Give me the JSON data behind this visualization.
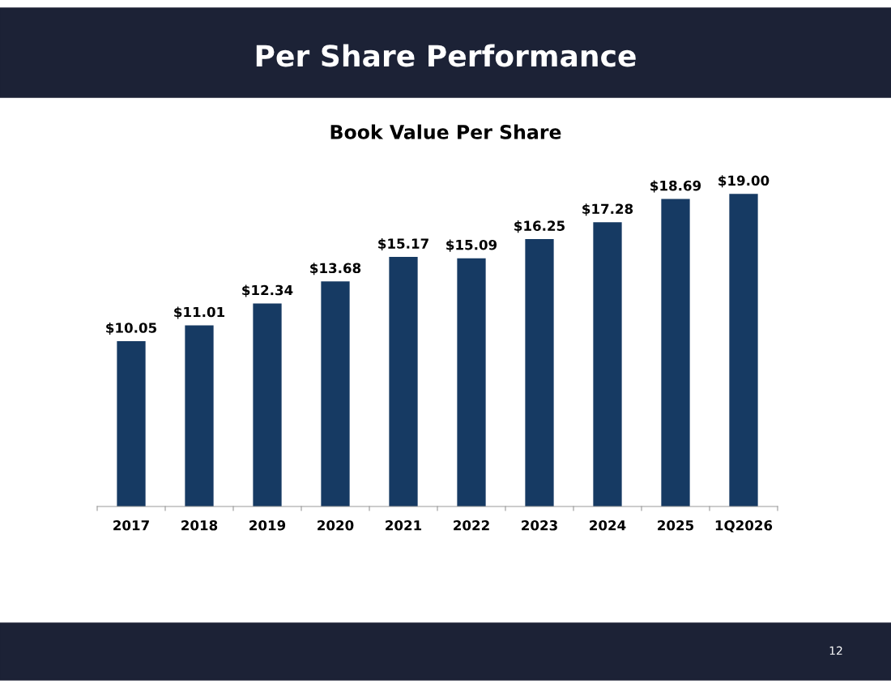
{
  "chart_data": {
    "type": "bar",
    "title": "Per Share Performance",
    "subtitle": "Book Value Per Share",
    "categories": [
      "2017",
      "2018",
      "2019",
      "2020",
      "2021",
      "2022",
      "2023",
      "2024",
      "2025",
      "1Q2026"
    ],
    "values": [
      10.05,
      11.01,
      12.34,
      13.68,
      15.17,
      15.09,
      16.25,
      17.28,
      18.69,
      19.0
    ],
    "value_labels": [
      "$10.05",
      "$11.01",
      "$12.34",
      "$13.68",
      "$15.17",
      "$15.09",
      "$16.25",
      "$17.28",
      "$18.69",
      "$19.00"
    ],
    "color": "#163a63",
    "tick_labels": "x",
    "grid": false,
    "legend": false,
    "annotations": [
      "12"
    ]
  }
}
